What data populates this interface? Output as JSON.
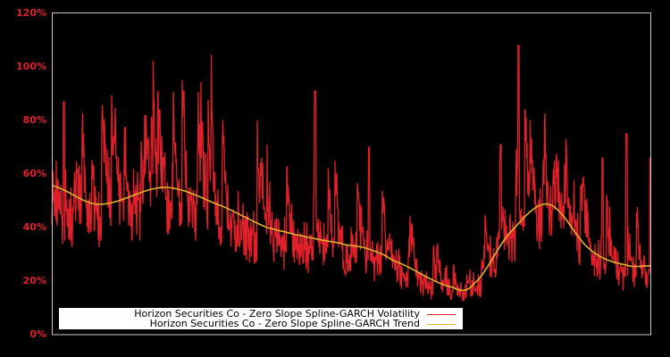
{
  "chart_data": {
    "type": "line",
    "title": "",
    "xlabel": "",
    "ylabel": "",
    "ylim": [
      0,
      120
    ],
    "y_ticks": [
      "0%",
      "20%",
      "40%",
      "60%",
      "80%",
      "100%",
      "120%"
    ],
    "y_tick_values": [
      0,
      20,
      40,
      60,
      80,
      100,
      120
    ],
    "grid": false,
    "legend_position": "lower left (inside)",
    "background": "#000000",
    "axis_color": "#c8c8c8",
    "tick_label_color": "#e0202a",
    "series": [
      {
        "name": "Horizon Securities Co - Zero Slope Spline-GARCH Volatility",
        "color": "#e0202a",
        "style": "jagged line",
        "approx_baseline_trend_pct": "follows trend, ranging ~11% to ~108%",
        "notable_peaks_pct": [
          {
            "x_frac": 0.02,
            "value": 87
          },
          {
            "x_frac": 0.18,
            "value": 84
          },
          {
            "x_frac": 0.22,
            "value": 91
          },
          {
            "x_frac": 0.44,
            "value": 91
          },
          {
            "x_frac": 0.53,
            "value": 70
          },
          {
            "x_frac": 0.75,
            "value": 71
          },
          {
            "x_frac": 0.78,
            "value": 108
          },
          {
            "x_frac": 0.92,
            "value": 66
          },
          {
            "x_frac": 0.96,
            "value": 75
          },
          {
            "x_frac": 1.0,
            "value": 66
          }
        ]
      },
      {
        "name": "Horizon Securities Co - Zero Slope Spline-GARCH Trend",
        "color": "#e0b030",
        "style": "smooth line",
        "x_frac": [
          0.0,
          0.078,
          0.19,
          0.285,
          0.36,
          0.48,
          0.525,
          0.57,
          0.67,
          0.705,
          0.765,
          0.83,
          0.9,
          0.96,
          1.0
        ],
        "values": [
          55.7,
          48.7,
          55.0,
          48.0,
          40.0,
          34.3,
          32.3,
          27.7,
          17.7,
          19.0,
          38.0,
          48.7,
          31.7,
          26.0,
          25.7
        ]
      }
    ]
  },
  "legend": {
    "items": [
      {
        "label": "Horizon Securities Co - Zero Slope Spline-GARCH Volatility",
        "color": "#e0202a"
      },
      {
        "label": "Horizon Securities Co - Zero Slope Spline-GARCH Trend",
        "color": "#e0b030"
      }
    ]
  }
}
